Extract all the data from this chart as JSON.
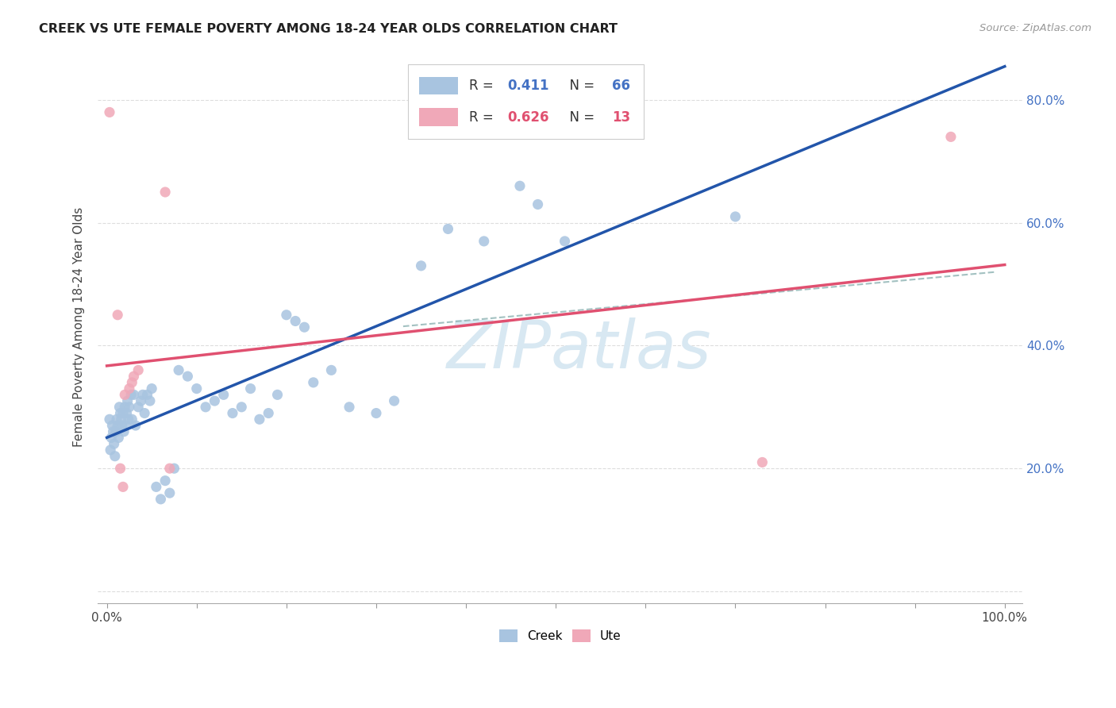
{
  "title": "CREEK VS UTE FEMALE POVERTY AMONG 18-24 YEAR OLDS CORRELATION CHART",
  "source": "Source: ZipAtlas.com",
  "ylabel": "Female Poverty Among 18-24 Year Olds",
  "xlim": [
    -0.01,
    1.02
  ],
  "ylim": [
    -0.02,
    0.88
  ],
  "creek_color": "#A8C4E0",
  "ute_color": "#F0A8B8",
  "creek_line_color": "#2255AA",
  "ute_line_color": "#E05070",
  "dash_color": "#99BBBB",
  "bg_color": "#FFFFFF",
  "grid_color": "#DDDDDD",
  "watermark": "ZIPatlas",
  "watermark_color": "#D8E8F2",
  "right_tick_color": "#4472C4",
  "legend_r_creek": "0.411",
  "legend_n_creek": "66",
  "legend_r_ute": "0.626",
  "legend_n_ute": "13",
  "creek_x": [
    0.003,
    0.004,
    0.005,
    0.006,
    0.007,
    0.008,
    0.009,
    0.01,
    0.011,
    0.012,
    0.013,
    0.014,
    0.015,
    0.016,
    0.017,
    0.018,
    0.019,
    0.02,
    0.021,
    0.022,
    0.023,
    0.024,
    0.025,
    0.027,
    0.028,
    0.03,
    0.032,
    0.035,
    0.038,
    0.04,
    0.042,
    0.045,
    0.048,
    0.05,
    0.055,
    0.06,
    0.065,
    0.07,
    0.075,
    0.08,
    0.09,
    0.1,
    0.11,
    0.12,
    0.13,
    0.14,
    0.15,
    0.16,
    0.17,
    0.18,
    0.19,
    0.2,
    0.21,
    0.22,
    0.23,
    0.25,
    0.27,
    0.3,
    0.32,
    0.35,
    0.38,
    0.42,
    0.46,
    0.48,
    0.51,
    0.7
  ],
  "creek_y": [
    0.28,
    0.23,
    0.25,
    0.27,
    0.26,
    0.24,
    0.22,
    0.26,
    0.28,
    0.27,
    0.25,
    0.3,
    0.29,
    0.28,
    0.27,
    0.29,
    0.26,
    0.3,
    0.27,
    0.29,
    0.31,
    0.28,
    0.3,
    0.32,
    0.28,
    0.32,
    0.27,
    0.3,
    0.31,
    0.32,
    0.29,
    0.32,
    0.31,
    0.33,
    0.17,
    0.15,
    0.18,
    0.16,
    0.2,
    0.36,
    0.35,
    0.33,
    0.3,
    0.31,
    0.32,
    0.29,
    0.3,
    0.33,
    0.28,
    0.29,
    0.32,
    0.45,
    0.44,
    0.43,
    0.34,
    0.36,
    0.3,
    0.29,
    0.31,
    0.53,
    0.59,
    0.57,
    0.66,
    0.63,
    0.57,
    0.61
  ],
  "ute_x": [
    0.003,
    0.012,
    0.015,
    0.018,
    0.02,
    0.025,
    0.028,
    0.03,
    0.035,
    0.065,
    0.07,
    0.73,
    0.94
  ],
  "ute_y": [
    0.78,
    0.45,
    0.2,
    0.17,
    0.32,
    0.33,
    0.34,
    0.35,
    0.36,
    0.65,
    0.2,
    0.21,
    0.74
  ]
}
